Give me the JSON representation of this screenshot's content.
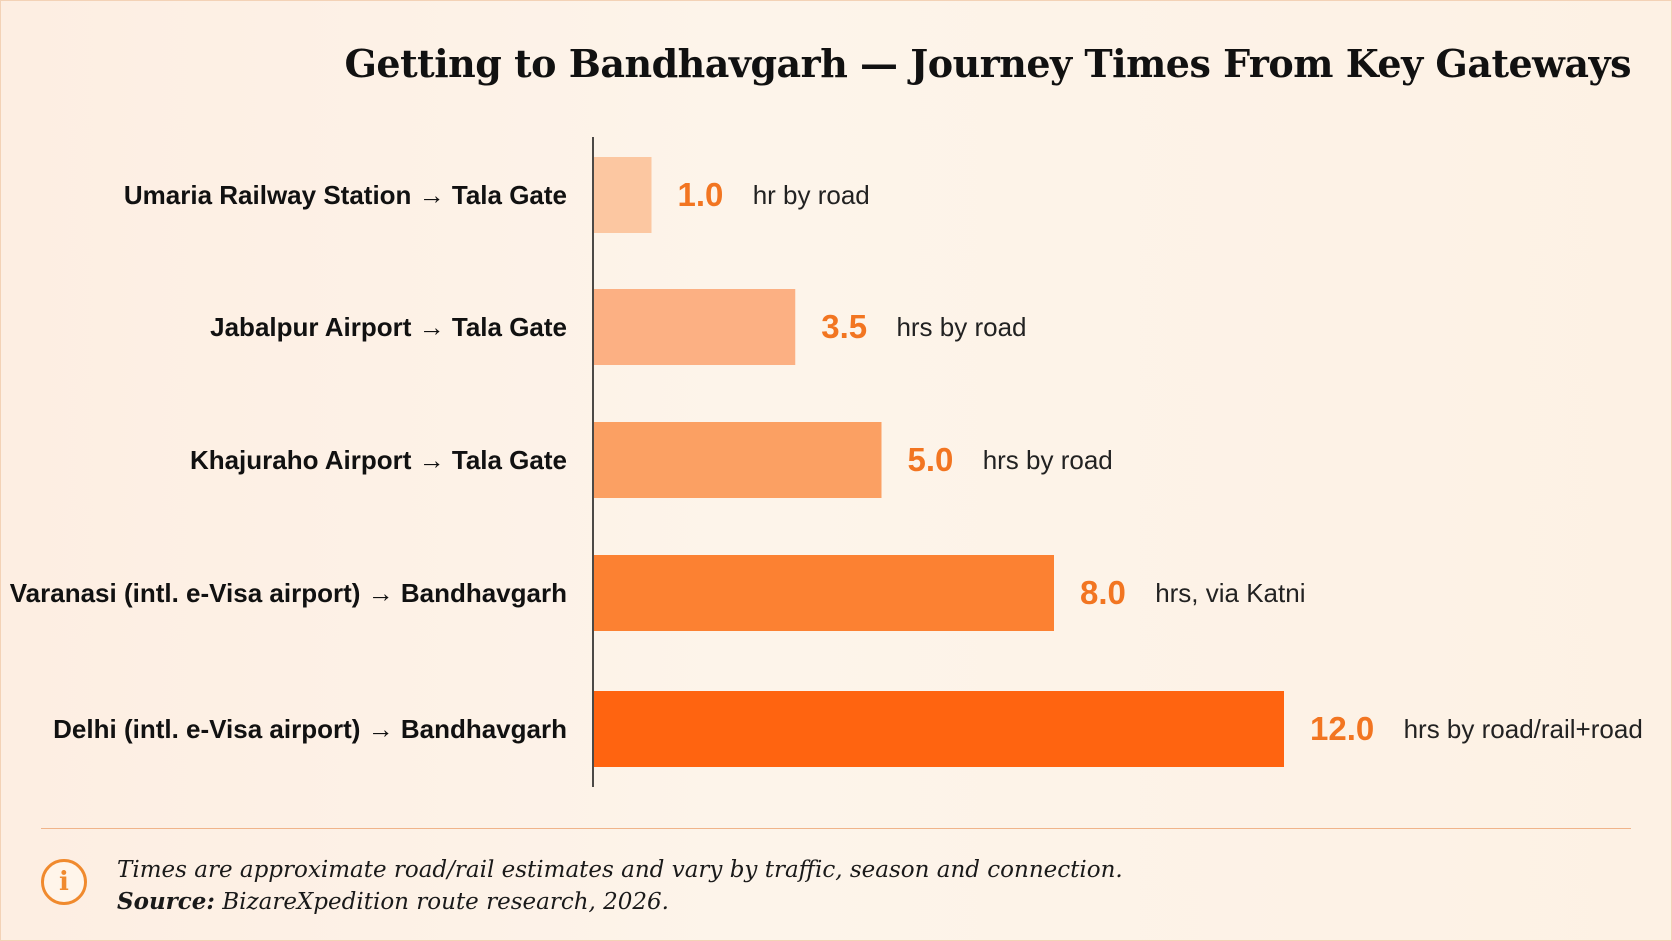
{
  "chart_data": {
    "type": "bar",
    "orientation": "horizontal",
    "title": "Getting to Bandhavgarh — Journey Times From Key Gateways",
    "categories": [
      "Umaria Railway Station → Tala Gate",
      "Jabalpur Airport → Tala Gate",
      "Khajuraho Airport → Tala Gate",
      "Varanasi (intl. e-Visa airport) → Bandhavgarh",
      "Delhi (intl. e-Visa airport) → Bandhavgarh"
    ],
    "values": [
      1.0,
      3.5,
      5.0,
      8.0,
      12.0
    ],
    "value_labels": [
      "1.0",
      "3.5",
      "5.0",
      "8.0",
      "12.0"
    ],
    "annotations": [
      "hr by road",
      "hrs by road",
      "hrs by road",
      "hrs, via Katni",
      "hrs by road/rail+road"
    ],
    "colors": [
      "#fcc7a1",
      "#fcb083",
      "#fba063",
      "#fc8132",
      "#ff6410"
    ],
    "value_label_color": "#f27521",
    "xlim": [
      0,
      12
    ],
    "grid": false,
    "legend": "none"
  },
  "footnote": {
    "note": "Times are approximate road/rail estimates and vary by traffic, season and connection.",
    "source_label": "Source:",
    "source_text": " BizareXpedition route research, 2026."
  },
  "icons": {
    "info": "info-icon"
  }
}
